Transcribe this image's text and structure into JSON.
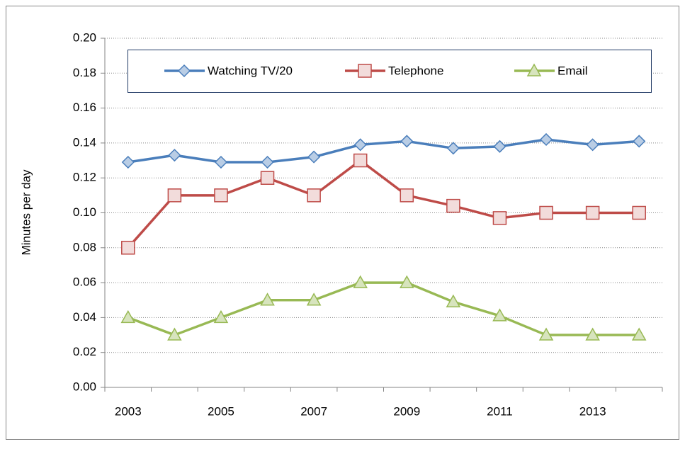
{
  "chart_data": {
    "type": "line",
    "y_label": "Minutes per day",
    "categories": [
      "2003",
      null,
      "2005",
      null,
      "2007",
      null,
      "2009",
      null,
      "2011",
      null,
      "2013",
      null
    ],
    "series": [
      {
        "name": "Watching TV/20",
        "color": "#4a7ebb",
        "marker": "diamond",
        "marker_fill": "#b9cde5",
        "values": [
          0.129,
          0.133,
          0.129,
          0.129,
          0.132,
          0.139,
          0.141,
          0.137,
          0.138,
          0.142,
          0.139,
          0.141
        ]
      },
      {
        "name": "Telephone",
        "color": "#be4b48",
        "marker": "square",
        "marker_fill": "#f2dcdb",
        "values": [
          0.08,
          0.11,
          0.11,
          0.12,
          0.11,
          0.13,
          0.11,
          0.104,
          0.097,
          0.1,
          0.1,
          0.1
        ]
      },
      {
        "name": "Email",
        "color": "#98b954",
        "marker": "triangle",
        "marker_fill": "#d7e4bd",
        "values": [
          0.04,
          0.03,
          0.04,
          0.05,
          0.05,
          0.06,
          0.06,
          0.049,
          0.041,
          0.03,
          0.03,
          0.03
        ]
      }
    ],
    "ylim": [
      0,
      0.2
    ],
    "yticks": [
      {
        "value": 0,
        "label": "0.00"
      },
      0.02,
      0.04,
      0.06,
      0.08,
      {
        "value": 0.1,
        "label": "0.10"
      },
      0.12,
      0.14,
      0.16,
      0.18,
      {
        "value": 0.2,
        "label": "0.20"
      }
    ],
    "grid": true,
    "legend": "top"
  }
}
